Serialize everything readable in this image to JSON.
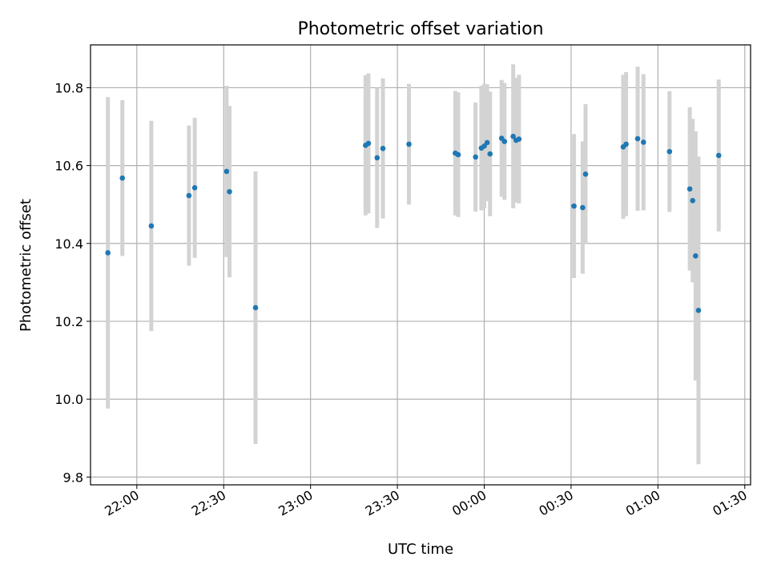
{
  "chart_data": {
    "type": "scatter",
    "title": "Photometric offset variation",
    "xlabel": "UTC time",
    "ylabel": "Photometric offset",
    "grid": true,
    "xlim": [
      "21:44",
      "01:32"
    ],
    "ylim": [
      9.78,
      10.91
    ],
    "x_ticks": [
      "22:00",
      "22:30",
      "23:00",
      "23:30",
      "00:00",
      "00:30",
      "01:00",
      "01:30"
    ],
    "y_ticks": [
      "9.8",
      "10.0",
      "10.2",
      "10.4",
      "10.6",
      "10.8"
    ],
    "colors": {
      "point": "#1f77b4",
      "errorbar": "#d3d3d3",
      "grid": "#b0b0b0"
    },
    "series": [
      {
        "points": [
          {
            "x": "21:50",
            "y": 10.376,
            "err": 0.4
          },
          {
            "x": "21:55",
            "y": 10.568,
            "err": 0.2
          },
          {
            "x": "22:05",
            "y": 10.445,
            "err": 0.27
          },
          {
            "x": "22:18",
            "y": 10.523,
            "err": 0.18
          },
          {
            "x": "22:20",
            "y": 10.543,
            "err": 0.18
          },
          {
            "x": "22:31",
            "y": 10.585,
            "err": 0.22
          },
          {
            "x": "22:32",
            "y": 10.533,
            "err": 0.22
          },
          {
            "x": "22:41",
            "y": 10.235,
            "err": 0.35
          },
          {
            "x": "23:19",
            "y": 10.652,
            "err": 0.18
          },
          {
            "x": "23:20",
            "y": 10.657,
            "err": 0.18
          },
          {
            "x": "23:23",
            "y": 10.62,
            "err": 0.18
          },
          {
            "x": "23:25",
            "y": 10.644,
            "err": 0.18
          },
          {
            "x": "23:34",
            "y": 10.655,
            "err": 0.155
          },
          {
            "x": "23:50",
            "y": 10.632,
            "err": 0.16
          },
          {
            "x": "23:51",
            "y": 10.628,
            "err": 0.16
          },
          {
            "x": "23:57",
            "y": 10.622,
            "err": 0.14
          },
          {
            "x": "23:59",
            "y": 10.645,
            "err": 0.16
          },
          {
            "x": "00:00",
            "y": 10.65,
            "err": 0.16
          },
          {
            "x": "00:01",
            "y": 10.659,
            "err": 0.15
          },
          {
            "x": "00:02",
            "y": 10.63,
            "err": 0.16
          },
          {
            "x": "00:06",
            "y": 10.67,
            "err": 0.15
          },
          {
            "x": "00:07",
            "y": 10.662,
            "err": 0.15
          },
          {
            "x": "00:10",
            "y": 10.675,
            "err": 0.185
          },
          {
            "x": "00:11",
            "y": 10.665,
            "err": 0.16
          },
          {
            "x": "00:12",
            "y": 10.668,
            "err": 0.165
          },
          {
            "x": "00:31",
            "y": 10.496,
            "err": 0.185
          },
          {
            "x": "00:34",
            "y": 10.492,
            "err": 0.17
          },
          {
            "x": "00:35",
            "y": 10.578,
            "err": 0.18
          },
          {
            "x": "00:48",
            "y": 10.648,
            "err": 0.185
          },
          {
            "x": "00:49",
            "y": 10.655,
            "err": 0.185
          },
          {
            "x": "00:53",
            "y": 10.669,
            "err": 0.185
          },
          {
            "x": "00:55",
            "y": 10.66,
            "err": 0.175
          },
          {
            "x": "01:04",
            "y": 10.636,
            "err": 0.155
          },
          {
            "x": "01:11",
            "y": 10.54,
            "err": 0.21
          },
          {
            "x": "01:12",
            "y": 10.51,
            "err": 0.21
          },
          {
            "x": "01:13",
            "y": 10.368,
            "err": 0.32
          },
          {
            "x": "01:14",
            "y": 10.228,
            "err": 0.395
          },
          {
            "x": "01:21",
            "y": 10.626,
            "err": 0.195
          }
        ]
      }
    ]
  }
}
